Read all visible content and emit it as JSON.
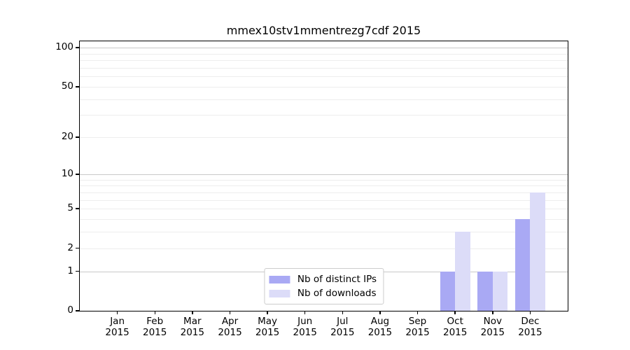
{
  "chart_data": {
    "type": "bar",
    "title": "mmex10stv1mmentrezg7cdf 2015",
    "categories": [
      "Jan",
      "Feb",
      "Mar",
      "Apr",
      "May",
      "Jun",
      "Jul",
      "Aug",
      "Sep",
      "Oct",
      "Nov",
      "Dec"
    ],
    "x_tick_year_line": "2015",
    "series": [
      {
        "name": "Nb of distinct IPs",
        "slug": "distinct-ips",
        "color": "#a9a9f4",
        "values": [
          0,
          0,
          0,
          0,
          0,
          0,
          0,
          0,
          0,
          1,
          1,
          4
        ]
      },
      {
        "name": "Nb of downloads",
        "slug": "downloads",
        "color": "#dcdcf8",
        "values": [
          0,
          0,
          0,
          0,
          0,
          0,
          0,
          0,
          0,
          3,
          1,
          7
        ]
      }
    ],
    "xlabel": "",
    "ylabel": "",
    "y_scale": "log1p",
    "ylim": [
      0,
      112
    ],
    "y_axis_ticks": [
      0,
      1,
      2,
      5,
      10,
      20,
      50,
      100
    ],
    "y_major_gridlines": [
      1,
      10,
      100
    ],
    "y_minor_gridlines": [
      2,
      3,
      4,
      5,
      6,
      7,
      8,
      9,
      20,
      30,
      40,
      50,
      60,
      70,
      80,
      90
    ],
    "grid": true,
    "legend_position": "lower center",
    "colors": {
      "axis": "#000000",
      "grid_minor": "#ededed",
      "grid_major": "#c9c9c9",
      "legend_border": "#cccccc",
      "background": "#ffffff"
    }
  }
}
